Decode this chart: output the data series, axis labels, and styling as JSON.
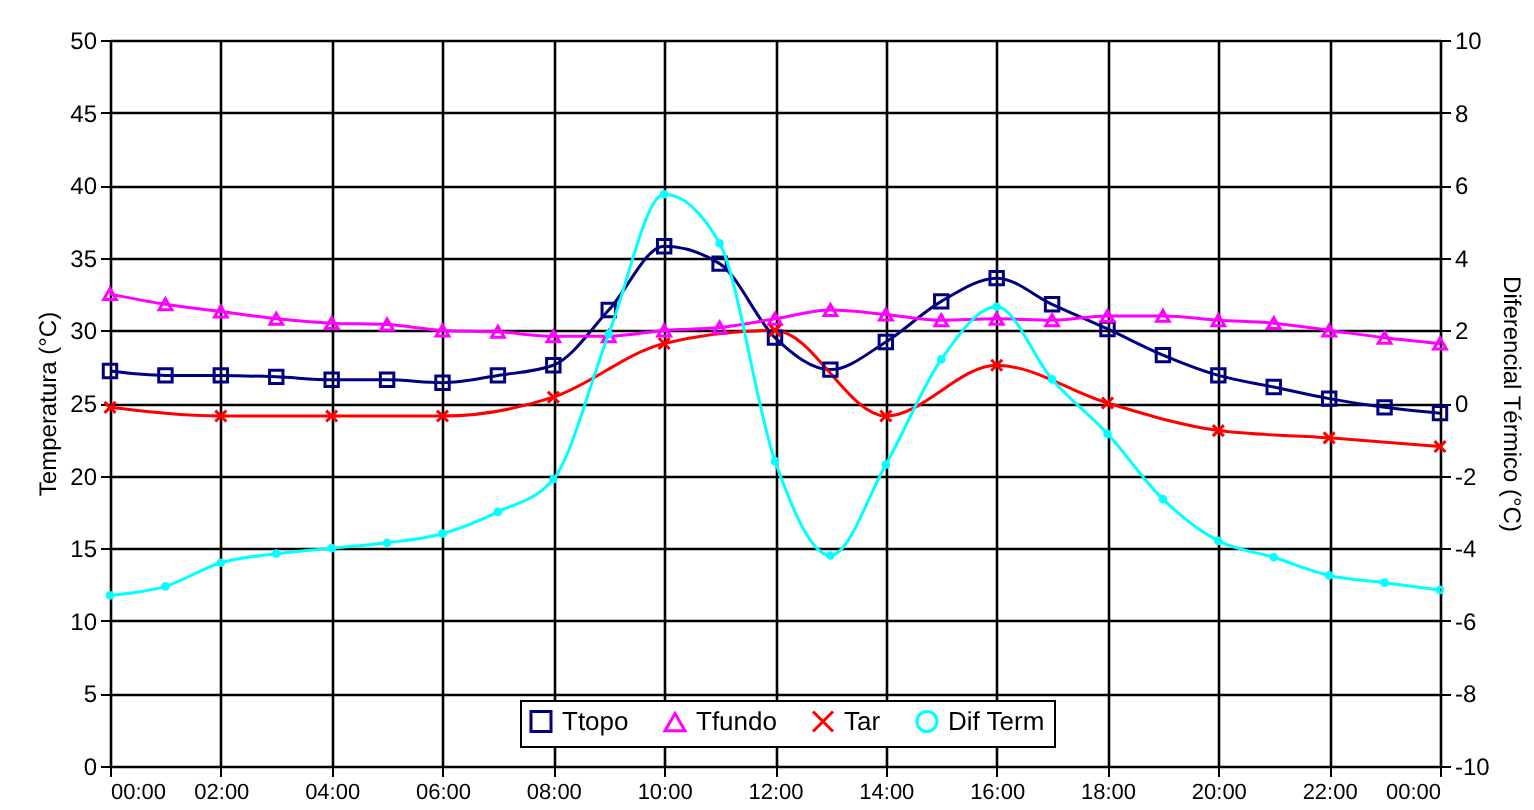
{
  "chart_data": {
    "type": "line",
    "ylabel": "Temperatura (°C)",
    "y2label": "Diferencial Térmico (°C)",
    "x": [
      0,
      1,
      2,
      3,
      4,
      5,
      6,
      7,
      8,
      9,
      10,
      11,
      12,
      13,
      14,
      15,
      16,
      17,
      18,
      19,
      20,
      21,
      22,
      23,
      24
    ],
    "xlim": [
      0,
      24
    ],
    "xticks": [
      {
        "value": 0,
        "label": "00:00"
      },
      {
        "value": 2,
        "label": "02:00"
      },
      {
        "value": 4,
        "label": "04:00"
      },
      {
        "value": 6,
        "label": "06:00"
      },
      {
        "value": 8,
        "label": "08:00"
      },
      {
        "value": 10,
        "label": "10:00"
      },
      {
        "value": 12,
        "label": "12:00"
      },
      {
        "value": 14,
        "label": "14:00"
      },
      {
        "value": 16,
        "label": "16:00"
      },
      {
        "value": 18,
        "label": "18:00"
      },
      {
        "value": 20,
        "label": "20:00"
      },
      {
        "value": 22,
        "label": "22:00"
      },
      {
        "value": 24,
        "label": "00:00"
      }
    ],
    "ylim": [
      0,
      50
    ],
    "yticks": [
      0,
      5,
      10,
      15,
      20,
      25,
      30,
      35,
      40,
      45,
      50
    ],
    "y2lim": [
      -10,
      10
    ],
    "y2ticks": [
      -10,
      -8,
      -6,
      -4,
      -2,
      0,
      2,
      4,
      6,
      8,
      10
    ],
    "grid": true,
    "legend": "bottom",
    "line_style": "solid",
    "series": [
      {
        "name": "Ttopo",
        "color": "#000080",
        "marker": "square",
        "values": [
          27.2,
          26.9,
          26.9,
          26.8,
          26.6,
          26.6,
          26.4,
          26.9,
          27.6,
          31.4,
          35.8,
          34.6,
          29.5,
          27.3,
          29.2,
          32.0,
          33.6,
          31.8,
          30.1,
          28.3,
          26.9,
          26.1,
          25.3,
          24.7,
          24.3
        ]
      },
      {
        "name": "Tfundo",
        "color": "#ff00ff",
        "marker": "triangle",
        "values": [
          32.5,
          31.8,
          31.3,
          30.8,
          30.5,
          30.4,
          30.0,
          29.9,
          29.6,
          29.6,
          30.0,
          30.2,
          30.8,
          31.4,
          31.1,
          30.7,
          30.8,
          30.7,
          31.0,
          31.0,
          30.7,
          30.5,
          30.0,
          29.5,
          29.1
        ]
      },
      {
        "name": "Tar",
        "color": "#ff0000",
        "marker": "cross",
        "x": [
          0,
          2,
          4,
          6,
          8,
          10,
          12,
          14,
          16,
          18,
          20,
          22,
          24
        ],
        "values": [
          24.7,
          24.1,
          24.1,
          24.1,
          25.4,
          29.1,
          30.0,
          24.1,
          27.6,
          25.0,
          23.1,
          22.6,
          22.0
        ]
      },
      {
        "name": "Dif Term",
        "color": "#00ffff",
        "marker": "circle",
        "axis": "y2",
        "values": [
          -5.3,
          -5.05,
          -4.4,
          -4.15,
          -4.0,
          -3.85,
          -3.6,
          -3.0,
          -2.1,
          1.9,
          5.75,
          4.4,
          -1.6,
          -4.2,
          -1.7,
          1.2,
          2.65,
          0.65,
          -0.85,
          -2.65,
          -3.8,
          -4.25,
          -4.75,
          -4.95,
          -5.15
        ]
      }
    ]
  }
}
